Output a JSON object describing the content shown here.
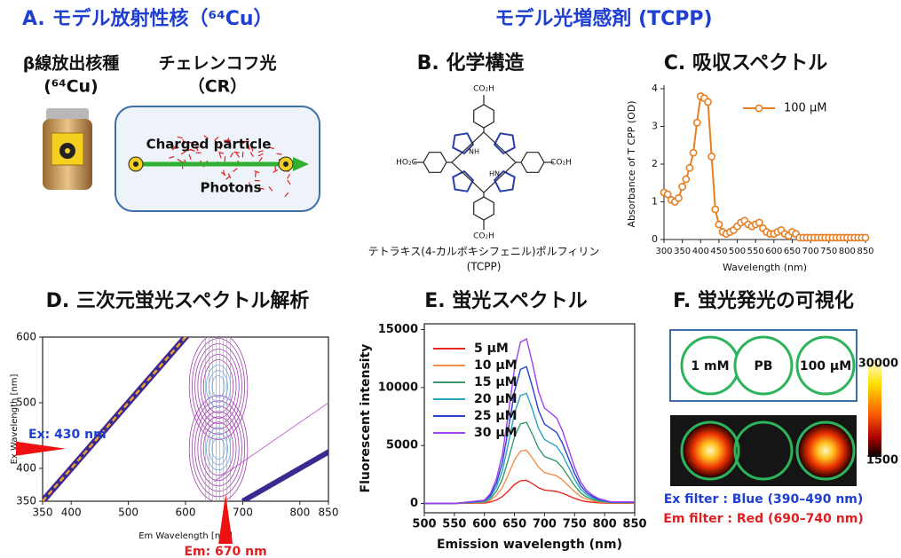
{
  "headers": {
    "a": "A. モデル放射性核（⁶⁴Cu）",
    "tcpp": "モデル光増感剤 (TCPP)"
  },
  "panel_a": {
    "source": "β線放出核種",
    "source_sub": "(⁶⁴Cu)",
    "light": "チェレンコフ光",
    "light_sub": "（CR）",
    "charged": "Charged particle",
    "photons": "Photons"
  },
  "panel_b": {
    "title": "B. 化学構造",
    "groups": [
      "CO₂H",
      "HO₂C",
      "CO₂H",
      "CO₂H"
    ],
    "nh": [
      "NH",
      "HN"
    ],
    "name": "テトラキス(4-カルボキシフェニル)ポルフィリン",
    "abbr": "(TCPP)"
  },
  "chart_data": [
    {
      "type": "line",
      "title": "C. 吸収スペクトル",
      "xlabel": "Wavelength (nm)",
      "ylabel": "Absorbance of T CPP (OD)",
      "x": [
        300,
        310,
        320,
        330,
        340,
        350,
        360,
        370,
        380,
        390,
        400,
        410,
        420,
        430,
        440,
        450,
        460,
        470,
        480,
        490,
        500,
        510,
        520,
        530,
        540,
        550,
        560,
        570,
        580,
        590,
        600,
        610,
        620,
        630,
        640,
        650,
        660,
        670,
        680,
        690,
        700,
        710,
        720,
        730,
        740,
        750,
        760,
        770,
        780,
        790,
        800,
        810,
        820,
        830,
        840,
        850
      ],
      "series": [
        {
          "name": "100 μM",
          "color": "#e67e22",
          "marker": "circle",
          "values": [
            1.25,
            1.2,
            1.05,
            1.0,
            1.1,
            1.4,
            1.6,
            1.9,
            2.3,
            3.1,
            3.8,
            3.75,
            3.65,
            2.2,
            0.8,
            0.4,
            0.2,
            0.15,
            0.2,
            0.25,
            0.35,
            0.45,
            0.5,
            0.4,
            0.35,
            0.4,
            0.45,
            0.3,
            0.2,
            0.15,
            0.15,
            0.2,
            0.25,
            0.15,
            0.1,
            0.2,
            0.15,
            0.05,
            0.05,
            0.05,
            0.05,
            0.05,
            0.05,
            0.05,
            0.05,
            0.05,
            0.05,
            0.05,
            0.05,
            0.05,
            0.05,
            0.05,
            0.05,
            0.05,
            0.05,
            0.05
          ]
        }
      ],
      "xlim": [
        300,
        850
      ],
      "xticks": [
        300,
        350,
        400,
        450,
        500,
        550,
        600,
        650,
        700,
        750,
        800,
        850
      ],
      "ylim": [
        0,
        4
      ],
      "yticks": [
        0,
        1,
        2,
        3,
        4
      ],
      "legend": "upper right"
    },
    {
      "type": "contour",
      "title": "D. 三次元蛍光スペクトル解析",
      "xlabel": "Em Wavelength [nm]",
      "ylabel": "Ex Wavelength [nm]",
      "xlim": [
        350,
        850
      ],
      "xticks": [
        350,
        400,
        500,
        600,
        700,
        800,
        850
      ],
      "ylim": [
        350,
        600
      ],
      "yticks": [
        350,
        400,
        500,
        600
      ],
      "annotations": [
        {
          "label": "Ex: 430 nm",
          "axis": "y",
          "value": 430
        },
        {
          "label": "Em: 670 nm",
          "axis": "x",
          "value": 670
        }
      ]
    },
    {
      "type": "line",
      "title": "E. 蛍光スペクトル",
      "xlabel": "Emission wavelength (nm)",
      "ylabel": "Fluorescent intensity",
      "x": [
        500,
        550,
        600,
        610,
        620,
        630,
        640,
        650,
        660,
        670,
        680,
        690,
        700,
        710,
        720,
        730,
        740,
        750,
        760,
        770,
        780,
        790,
        800,
        810,
        820,
        830,
        840,
        850
      ],
      "series": [
        {
          "name": "5 μM",
          "color": "#e8281e",
          "values": [
            0,
            0,
            40,
            120,
            300,
            600,
            1100,
            1640,
            1960,
            2000,
            1700,
            1360,
            1160,
            1100,
            1040,
            880,
            660,
            440,
            260,
            160,
            100,
            60,
            40,
            20,
            20,
            20,
            20,
            20
          ]
        },
        {
          "name": "10 μM",
          "color": "#f0904a",
          "values": [
            0,
            0,
            92,
            276,
            690,
            1380,
            2530,
            3772,
            4508,
            4600,
            3910,
            3128,
            2668,
            2530,
            2392,
            2024,
            1518,
            1012,
            598,
            368,
            230,
            138,
            92,
            46,
            46,
            46,
            46,
            46
          ]
        },
        {
          "name": "15 μM",
          "color": "#3a9a6e",
          "values": [
            0,
            0,
            140,
            420,
            1050,
            2100,
            3850,
            5740,
            6860,
            7000,
            5950,
            4760,
            4060,
            3850,
            3640,
            3080,
            2310,
            1540,
            910,
            560,
            350,
            210,
            140,
            70,
            70,
            70,
            70,
            70
          ]
        },
        {
          "name": "20 μM",
          "color": "#2aa3bd",
          "values": [
            0,
            0,
            190,
            570,
            1425,
            2850,
            5225,
            7790,
            9310,
            9500,
            8075,
            6460,
            5510,
            5225,
            4940,
            4180,
            3135,
            2090,
            1235,
            760,
            475,
            285,
            190,
            95,
            95,
            95,
            95,
            95
          ]
        },
        {
          "name": "25 μM",
          "color": "#2840d0",
          "values": [
            0,
            0,
            236,
            708,
            1770,
            3540,
            6490,
            9676,
            11564,
            11800,
            10030,
            8024,
            6844,
            6490,
            6136,
            5192,
            3894,
            2596,
            1534,
            944,
            590,
            354,
            236,
            118,
            118,
            118,
            118,
            118
          ]
        },
        {
          "name": "30 μM",
          "color": "#a040f0",
          "values": [
            0,
            0,
            284,
            852,
            2130,
            4260,
            7810,
            11644,
            13916,
            14200,
            12070,
            9656,
            8236,
            7810,
            7384,
            6248,
            4686,
            3124,
            1846,
            1136,
            710,
            426,
            284,
            142,
            142,
            142,
            142,
            142
          ]
        }
      ],
      "xlim": [
        500,
        850
      ],
      "xticks": [
        500,
        550,
        600,
        650,
        700,
        750,
        800,
        850
      ],
      "ylim": [
        -800,
        15500
      ],
      "yticks": [
        0,
        5000,
        10000,
        15000
      ],
      "legend": "upper left"
    }
  ],
  "panel_f": {
    "title": "F. 蛍光発光の可視化",
    "wells": [
      "1 mM",
      "PB",
      "100 μM"
    ],
    "colorbar": {
      "lim": [
        1500,
        30000
      ]
    },
    "ex_filter": "Ex filter : Blue (390–490 nm)",
    "em_filter": "Em filter : Red (690–740 nm)"
  }
}
